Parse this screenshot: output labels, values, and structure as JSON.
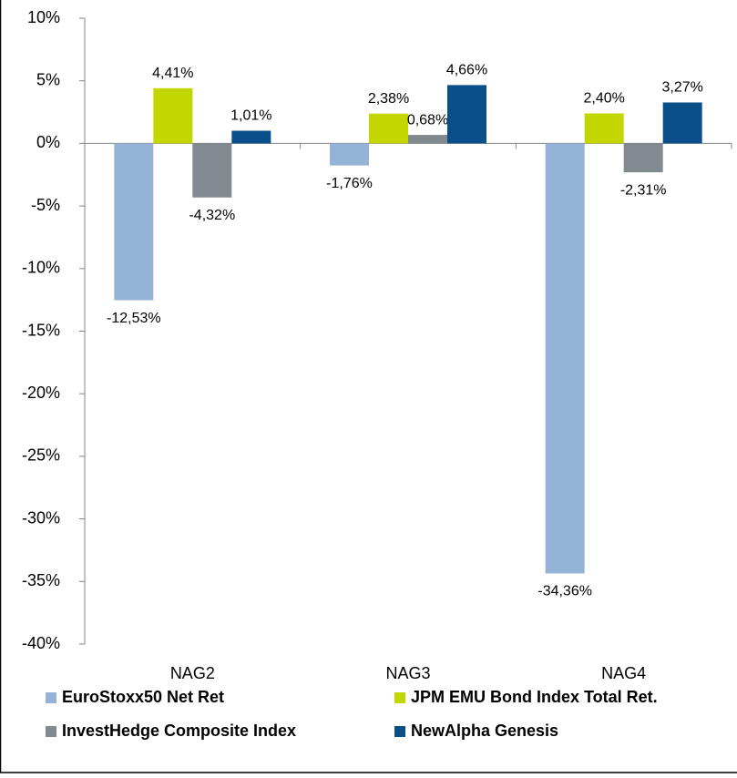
{
  "chart_data": {
    "type": "bar",
    "categories": [
      "NAG2",
      "NAG3",
      "NAG4"
    ],
    "series": [
      {
        "name": "EuroStoxx50 Net Ret",
        "color": "#95b3d7",
        "values": [
          -12.53,
          -1.76,
          -34.36
        ],
        "value_labels": [
          "-12,53%",
          "-1,76%",
          "-34,36%"
        ]
      },
      {
        "name": "JPM EMU Bond Index Total Ret.",
        "color": "#c4d600",
        "values": [
          4.41,
          2.38,
          2.4
        ],
        "value_labels": [
          "4,41%",
          "2,38%",
          "2,40%"
        ]
      },
      {
        "name": "InvestHedge Composite Index",
        "color": "#808a8f",
        "values": [
          -4.32,
          0.68,
          -2.31
        ],
        "value_labels": [
          "-4,32%",
          "0,68%",
          "-2,31%"
        ]
      },
      {
        "name": "NewAlpha Genesis",
        "color": "#0b4f8a",
        "values": [
          1.01,
          4.66,
          3.27
        ],
        "value_labels": [
          "1,01%",
          "4,66%",
          "3,27%"
        ]
      }
    ],
    "ylim": [
      -40,
      10
    ],
    "yticks": [
      {
        "value": -40,
        "label": "-40%"
      },
      {
        "value": -35,
        "label": "-35%"
      },
      {
        "value": -30,
        "label": "-30%"
      },
      {
        "value": -25,
        "label": "-25%"
      },
      {
        "value": -20,
        "label": "-20%"
      },
      {
        "value": -15,
        "label": "-15%"
      },
      {
        "value": -10,
        "label": "-10%"
      },
      {
        "value": -5,
        "label": "-5%"
      },
      {
        "value": 0,
        "label": "0%"
      },
      {
        "value": 5,
        "label": "5%"
      },
      {
        "value": 10,
        "label": "10%"
      }
    ],
    "grid": false,
    "legend": "bottom"
  }
}
